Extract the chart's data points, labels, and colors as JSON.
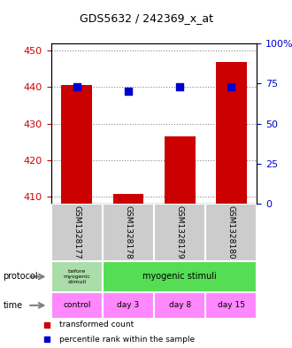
{
  "title": "GDS5632 / 242369_x_at",
  "samples": [
    "GSM1328177",
    "GSM1328178",
    "GSM1328179",
    "GSM1328180"
  ],
  "bar_values": [
    440.5,
    410.7,
    426.5,
    447.0
  ],
  "dot_values": [
    440,
    439,
    440,
    440
  ],
  "ylim_left": [
    408,
    452
  ],
  "ylim_right": [
    0,
    100
  ],
  "yticks_left": [
    410,
    420,
    430,
    440,
    450
  ],
  "yticks_right": [
    0,
    25,
    50,
    75,
    100
  ],
  "ytick_labels_right": [
    "0",
    "25",
    "50",
    "75",
    "100%"
  ],
  "bar_color": "#cc0000",
  "dot_color": "#0000cc",
  "bar_width": 0.6,
  "time_labels": [
    "control",
    "day 3",
    "day 8",
    "day 15"
  ],
  "time_color": "#ff88ff",
  "sample_bg_color": "#cccccc",
  "protocol_color_before": "#aaddaa",
  "protocol_color_myogenic": "#55dd55",
  "legend_red_label": "transformed count",
  "legend_blue_label": "percentile rank within the sample",
  "grid_color": "#888888",
  "axis_color": "#cc0000",
  "right_axis_color": "#0000cc"
}
